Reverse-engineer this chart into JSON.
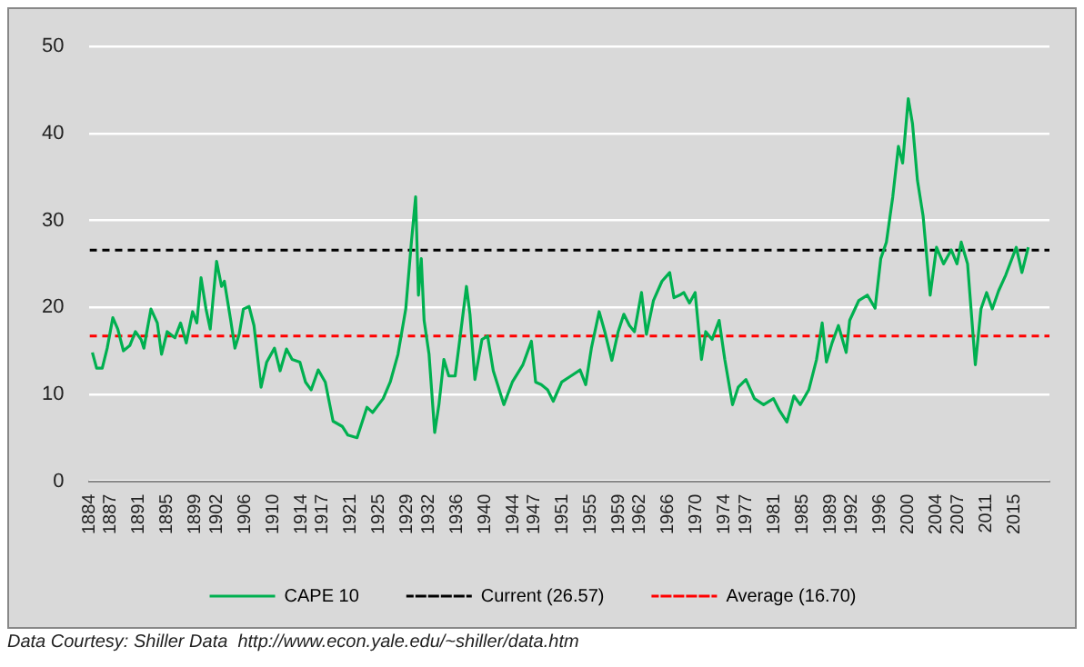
{
  "chart_data": {
    "type": "line",
    "x": [
      1884.4,
      1885.0,
      1885.8,
      1886.5,
      1887.3,
      1888.0,
      1888.8,
      1889.7,
      1890.5,
      1891.3,
      1891.7,
      1892.7,
      1893.6,
      1894.2,
      1895.0,
      1896.1,
      1896.9,
      1897.7,
      1898.6,
      1899.2,
      1899.8,
      1900.5,
      1901.1,
      1902.0,
      1902.7,
      1903.1,
      1904.0,
      1904.6,
      1905.2,
      1905.8,
      1906.6,
      1907.3,
      1908.3,
      1909.1,
      1910.2,
      1911.0,
      1911.9,
      1912.7,
      1913.8,
      1914.6,
      1915.4,
      1916.4,
      1917.4,
      1918.5,
      1919.8,
      1920.6,
      1921.9,
      1923.3,
      1924.1,
      1925.6,
      1926.6,
      1927.7,
      1928.8,
      1929.6,
      1930.2,
      1930.6,
      1931.0,
      1931.4,
      1932.1,
      1932.9,
      1933.5,
      1934.2,
      1934.9,
      1935.8,
      1936.6,
      1937.4,
      1937.9,
      1938.6,
      1939.6,
      1940.4,
      1941.2,
      1942.7,
      1943.9,
      1945.4,
      1946.6,
      1947.2,
      1948.0,
      1948.9,
      1949.7,
      1950.9,
      1952.2,
      1953.5,
      1954.3,
      1955.1,
      1956.2,
      1957.0,
      1958.0,
      1958.9,
      1959.7,
      1960.5,
      1961.2,
      1962.2,
      1962.9,
      1963.9,
      1965.1,
      1966.2,
      1966.8,
      1967.6,
      1968.2,
      1969.0,
      1969.8,
      1970.7,
      1971.3,
      1972.2,
      1973.2,
      1974.0,
      1975.1,
      1975.9,
      1977.0,
      1978.2,
      1979.5,
      1980.9,
      1981.7,
      1982.8,
      1983.8,
      1984.7,
      1985.9,
      1987.0,
      1987.8,
      1988.4,
      1989.2,
      1990.1,
      1991.2,
      1991.7,
      1993.0,
      1994.2,
      1995.3,
      1996.1,
      1996.9,
      1997.8,
      1998.6,
      1999.2,
      2000.0,
      2000.6,
      2001.3,
      2002.1,
      2003.1,
      2004.0,
      2005.0,
      2006.1,
      2006.9,
      2007.5,
      2008.4,
      2009.5,
      2010.3,
      2011.1,
      2011.9,
      2012.8,
      2013.8,
      2015.3,
      2016.1,
      2017.0
    ],
    "series": [
      {
        "name": "CAPE 10",
        "color": "#00b050",
        "values": [
          14.8,
          13.0,
          13.0,
          15.3,
          18.8,
          17.5,
          15.0,
          15.6,
          17.2,
          16.3,
          15.3,
          19.8,
          18.2,
          14.6,
          17.2,
          16.5,
          18.2,
          15.9,
          19.5,
          18.2,
          23.4,
          19.8,
          17.5,
          25.3,
          22.4,
          23.0,
          18.5,
          15.3,
          16.9,
          19.8,
          20.1,
          17.9,
          10.8,
          13.7,
          15.3,
          12.7,
          15.2,
          14.0,
          13.7,
          11.4,
          10.5,
          12.8,
          11.4,
          6.9,
          6.3,
          5.3,
          5.0,
          8.5,
          7.9,
          9.5,
          11.4,
          14.6,
          19.8,
          27.5,
          32.7,
          21.4,
          25.6,
          18.5,
          14.6,
          5.6,
          8.8,
          14.0,
          12.1,
          12.1,
          17.2,
          22.4,
          19.2,
          11.7,
          16.3,
          16.7,
          12.7,
          8.8,
          11.4,
          13.4,
          16.1,
          11.4,
          11.1,
          10.5,
          9.2,
          11.4,
          12.1,
          12.8,
          11.1,
          15.3,
          19.5,
          17.2,
          13.9,
          17.2,
          19.2,
          17.9,
          17.2,
          21.7,
          16.9,
          20.8,
          23.0,
          24.0,
          21.1,
          21.4,
          21.7,
          20.5,
          21.7,
          14.0,
          17.2,
          16.3,
          18.5,
          14.0,
          8.8,
          10.8,
          11.7,
          9.5,
          8.8,
          9.5,
          8.2,
          6.8,
          9.8,
          8.8,
          10.5,
          14.0,
          18.2,
          13.7,
          15.9,
          17.9,
          14.8,
          18.5,
          20.8,
          21.4,
          19.9,
          25.6,
          27.5,
          32.7,
          38.5,
          36.6,
          44.0,
          41.1,
          34.6,
          30.5,
          21.4,
          26.9,
          25.0,
          26.6,
          25.0,
          27.5,
          25.0,
          13.4,
          19.8,
          21.7,
          19.8,
          21.9,
          23.7,
          26.9,
          24.0,
          26.9
        ]
      }
    ],
    "xlim": [
      1884,
      2020
    ],
    "xticks": [
      1884,
      1887,
      1891,
      1895,
      1899,
      1902,
      1906,
      1910,
      1914,
      1917,
      1921,
      1925,
      1929,
      1932,
      1936,
      1940,
      1944,
      1947,
      1951,
      1955,
      1959,
      1962,
      1966,
      1970,
      1974,
      1977,
      1981,
      1985,
      1989,
      1992,
      1996,
      2000,
      2004,
      2007,
      2011,
      2015
    ],
    "ylim": [
      0,
      50
    ],
    "yticks": [
      0,
      10,
      20,
      30,
      40,
      50
    ],
    "grid": "y",
    "legend": "bottom",
    "marker": "none",
    "line_style": "solid",
    "ref_lines": [
      {
        "axis": "y",
        "value": 26.57,
        "label": "Current (26.57)",
        "color": "#000000",
        "line_style": "dashed"
      },
      {
        "axis": "y",
        "value": 16.7,
        "label": "Average (16.70)",
        "color": "#ff0000",
        "line_style": "dashed"
      }
    ],
    "annotations": [
      "Data Courtesy: Shiller Data  http://www.econ.yale.edu/~shiller/data.htm"
    ]
  }
}
